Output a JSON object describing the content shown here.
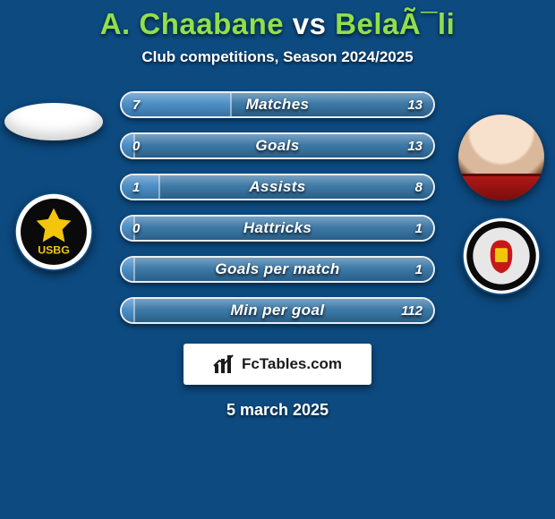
{
  "background_color": "#0c4a80",
  "title": {
    "player_a": "A. Chaabane",
    "separator": "vs",
    "player_b": "BelaÃ¯li",
    "color_a": "#8fe04a",
    "color_sep": "#ffffff",
    "color_b": "#8fe04a",
    "fontsize": 33,
    "fontweight": 900
  },
  "subtitle": {
    "text": "Club competitions, Season 2024/2025",
    "fontsize": 17,
    "color": "#ffffff"
  },
  "left": {
    "portrait_placeholder": true,
    "club_name": "USBG",
    "club_colors": {
      "outer": "#ffffff",
      "inner": "#0a0a0a",
      "accent": "#f3c60b"
    }
  },
  "right": {
    "portrait_placeholder": false,
    "club_name": "Espérance de Tunis",
    "club_colors": {
      "outer": "#ffffff",
      "inner": "#e7e7e7",
      "ring": "#0a0a0a",
      "primary": "#c71818",
      "secondary": "#f3c60b"
    }
  },
  "fill_colors": {
    "left": "#3f86c0",
    "right": "#2f6fa0"
  },
  "bar_border_color": "#ffffff",
  "bar_bg_color_rgba": "rgba(255,255,255,0.08)",
  "value_color": "#ffffff",
  "label_color": "#ffffff",
  "stats": [
    {
      "label": "Matches",
      "a": 7,
      "b": 13,
      "fill_a_pct": 35,
      "fill_b_pct": 65
    },
    {
      "label": "Goals",
      "a": 0,
      "b": 13,
      "fill_a_pct": 4,
      "fill_b_pct": 96
    },
    {
      "label": "Assists",
      "a": 1,
      "b": 8,
      "fill_a_pct": 12,
      "fill_b_pct": 88
    },
    {
      "label": "Hattricks",
      "a": 0,
      "b": 1,
      "fill_a_pct": 4,
      "fill_b_pct": 96
    },
    {
      "label": "Goals per match",
      "a": "",
      "b": 1,
      "fill_a_pct": 4,
      "fill_b_pct": 96
    },
    {
      "label": "Min per goal",
      "a": "",
      "b": 112,
      "fill_a_pct": 4,
      "fill_b_pct": 96
    }
  ],
  "brand": {
    "text": "FcTables.com",
    "fontsize": 17,
    "background": "#ffffff",
    "text_color": "#1b1b1b"
  },
  "date": {
    "text": "5 march 2025",
    "fontsize": 18,
    "color": "#ffffff"
  }
}
